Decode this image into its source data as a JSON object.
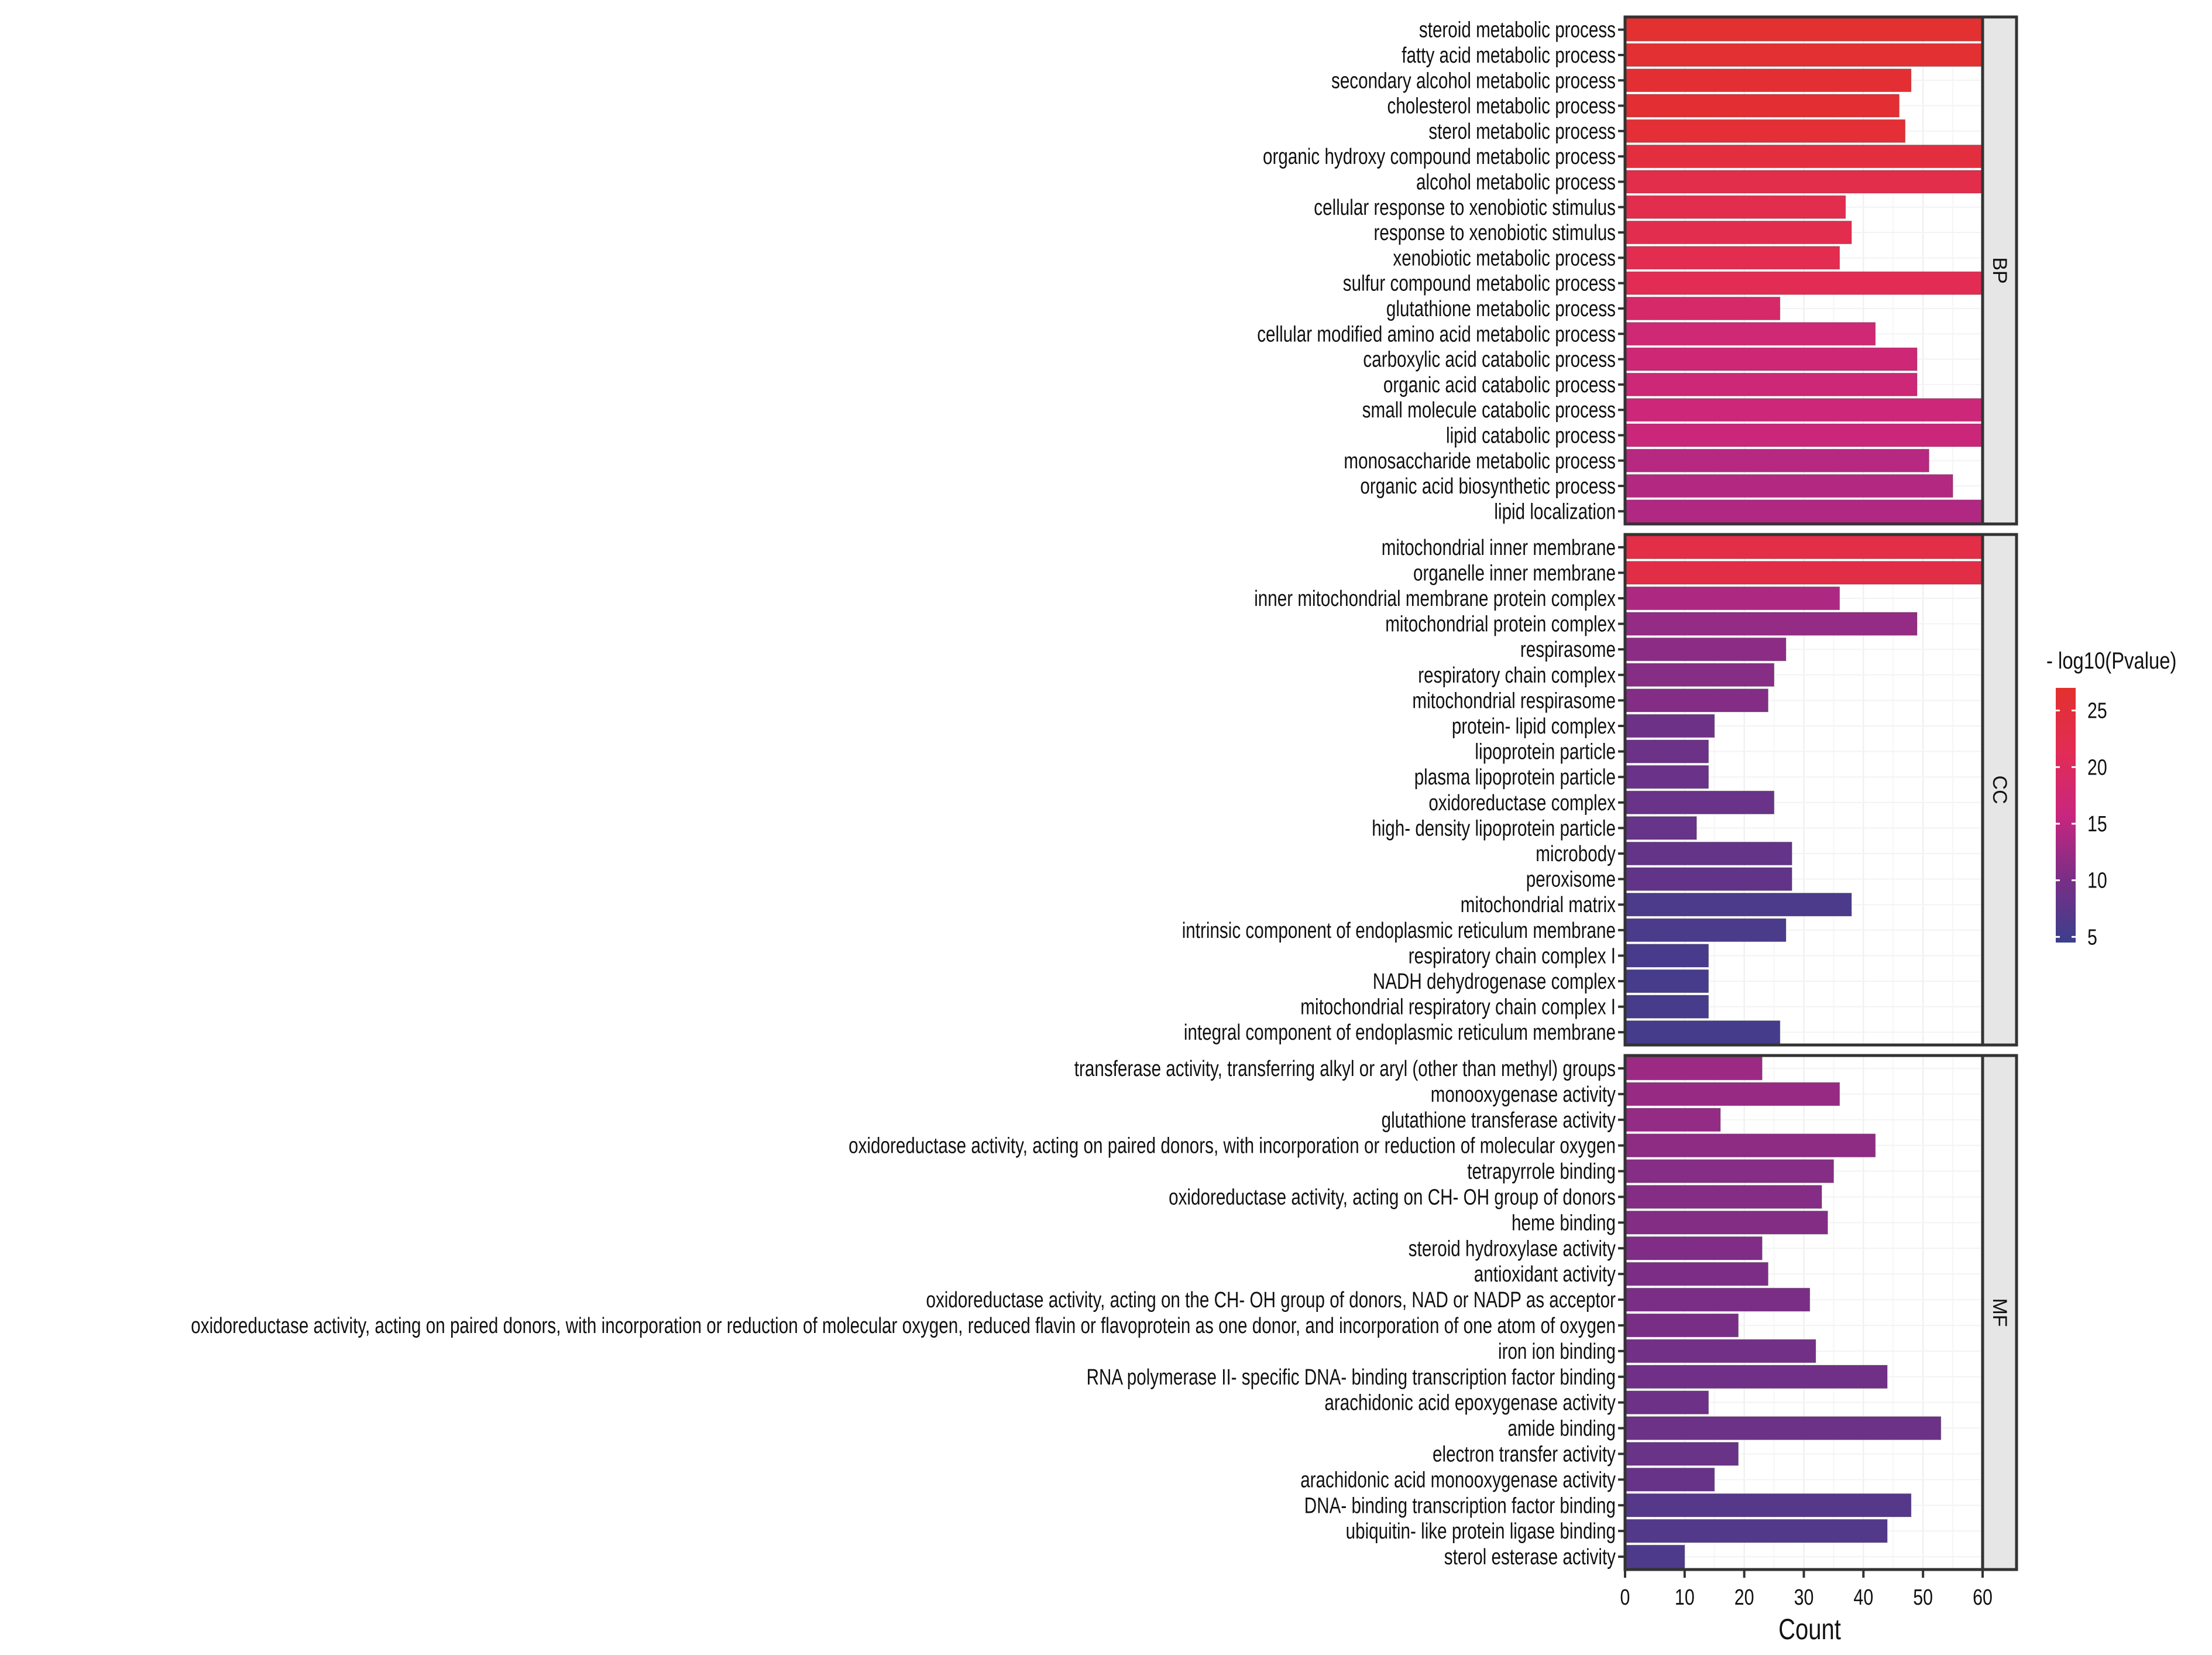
{
  "chart_data": {
    "type": "bar",
    "orientation": "horizontal",
    "xlabel": "Count",
    "xlim": [
      0,
      60
    ],
    "xticks": [
      "0",
      "10",
      "20",
      "30",
      "40",
      "50",
      "60"
    ],
    "legend": {
      "title": "- log10(Pvalue)",
      "ticks": [
        "25",
        "20",
        "15",
        "10",
        "5"
      ],
      "tick_values": [
        25,
        20,
        15,
        10,
        5
      ],
      "range": [
        4.5,
        27
      ],
      "low_color": "#3B3F8C",
      "mid_color": "#C8267F",
      "high_color": "#E3302D",
      "placement": "right"
    },
    "facets": [
      {
        "name": "BP",
        "categories": [
          "steroid metabolic process",
          "fatty acid metabolic process",
          "secondary alcohol metabolic process",
          "cholesterol metabolic process",
          "sterol metabolic process",
          "organic hydroxy compound metabolic process",
          "alcohol metabolic process",
          "cellular response to xenobiotic stimulus",
          "response to xenobiotic stimulus",
          "xenobiotic metabolic process",
          "sulfur compound metabolic process",
          "glutathione metabolic process",
          "cellular modified amino acid metabolic process",
          "carboxylic acid catabolic process",
          "organic acid catabolic process",
          "small molecule catabolic process",
          "lipid catabolic process",
          "monosaccharide metabolic process",
          "organic acid biosynthetic process",
          "lipid localization"
        ],
        "values": [
          60,
          60,
          48,
          46,
          47,
          60,
          60,
          37,
          38,
          36,
          60,
          26,
          42,
          49,
          49,
          60,
          60,
          51,
          55,
          60
        ],
        "neglog10p": [
          26.5,
          26.3,
          26.2,
          26.0,
          25.9,
          24.5,
          22.8,
          22.5,
          22.3,
          22.1,
          21.5,
          18.5,
          17.2,
          16.9,
          16.8,
          16.6,
          16.4,
          14.5,
          14.2,
          14.0
        ]
      },
      {
        "name": "CC",
        "categories": [
          "mitochondrial inner membrane",
          "organelle inner membrane",
          "inner mitochondrial membrane protein complex",
          "mitochondrial protein complex",
          "respirasome",
          "respiratory chain complex",
          "mitochondrial respirasome",
          "protein- lipid complex",
          "lipoprotein particle",
          "plasma lipoprotein particle",
          "oxidoreductase complex",
          "high- density lipoprotein particle",
          "microbody",
          "peroxisome",
          "mitochondrial matrix",
          "intrinsic component of endoplasmic reticulum membrane",
          "respiratory chain complex I",
          "NADH dehydrogenase complex",
          "mitochondrial respiratory chain complex I",
          "integral component of endoplasmic reticulum membrane"
        ],
        "values": [
          60,
          60,
          36,
          49,
          27,
          25,
          24,
          15,
          14,
          14,
          25,
          12,
          28,
          28,
          38,
          27,
          14,
          14,
          14,
          26
        ],
        "neglog10p": [
          23.5,
          23.3,
          13.8,
          12.0,
          11.5,
          11.0,
          10.8,
          9.0,
          8.8,
          8.7,
          8.5,
          8.3,
          8.1,
          8.0,
          6.0,
          5.9,
          5.7,
          5.6,
          5.5,
          5.4
        ]
      },
      {
        "name": "MF",
        "categories": [
          "transferase activity, transferring alkyl or aryl (other than methyl) groups",
          "monooxygenase activity",
          "glutathione transferase activity",
          "oxidoreductase activity, acting on paired donors, with incorporation or reduction of molecular oxygen",
          "tetrapyrrole binding",
          "oxidoreductase activity, acting on CH- OH group of donors",
          "heme binding",
          "steroid hydroxylase activity",
          "antioxidant activity",
          "oxidoreductase activity, acting on the CH- OH group of donors, NAD or NADP as acceptor",
          "oxidoreductase activity, acting on paired donors, with incorporation or reduction of molecular oxygen, reduced flavin or flavoprotein as one donor, and incorporation of one atom of oxygen",
          "iron ion binding",
          "RNA polymerase II- specific DNA- binding transcription factor binding",
          "arachidonic acid epoxygenase activity",
          "amide binding",
          "electron transfer activity",
          "arachidonic acid monooxygenase activity",
          "DNA- binding transcription factor binding",
          "ubiquitin- like protein ligase binding",
          "sterol esterase activity"
        ],
        "values": [
          23,
          36,
          16,
          42,
          35,
          33,
          34,
          23,
          24,
          31,
          19,
          32,
          44,
          14,
          53,
          19,
          15,
          48,
          44,
          10
        ],
        "neglog10p": [
          12.6,
          12.2,
          12.0,
          11.6,
          11.0,
          10.9,
          10.8,
          10.5,
          10.3,
          10.1,
          10.0,
          9.5,
          9.3,
          9.0,
          8.8,
          8.6,
          8.4,
          6.8,
          6.6,
          6.2
        ]
      }
    ]
  }
}
